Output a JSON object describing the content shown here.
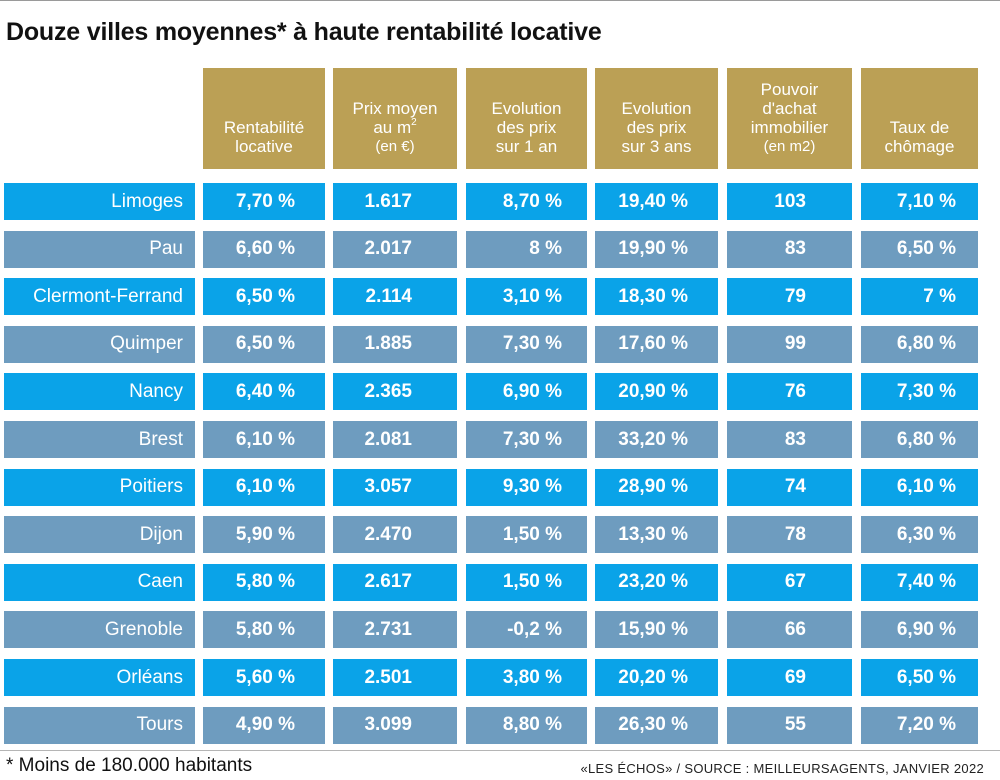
{
  "title": "Douze villes moyennes* à haute rentabilité locative",
  "footnote": "* Moins de 180.000 habitants",
  "source": "«LES ÉCHOS» / SOURCE : MEILLEURSAGENTS, JANVIER 2022",
  "colors": {
    "header": "#bba055",
    "row_bright": "#0aa3e8",
    "row_muted": "#6e9cbf",
    "text_on_fill": "#ffffff"
  },
  "chart_data": {
    "type": "table",
    "columns": [
      {
        "key": "rentabilite",
        "lines": [
          "Rentabilité",
          "locative"
        ]
      },
      {
        "key": "prix",
        "lines": [
          "Prix moyen",
          "au m"
        ],
        "superscript": "2",
        "unit": "(en €)"
      },
      {
        "key": "evol1",
        "lines": [
          "Evolution",
          "des prix",
          "sur 1 an"
        ]
      },
      {
        "key": "evol3",
        "lines": [
          "Evolution",
          "des prix",
          "sur 3 ans"
        ]
      },
      {
        "key": "pouvoir",
        "lines": [
          "Pouvoir",
          "d'achat",
          "immobilier"
        ],
        "unit": "(en m2)"
      },
      {
        "key": "chomage",
        "lines": [
          "Taux de",
          "chômage"
        ]
      }
    ],
    "rows": [
      {
        "city": "Limoges",
        "values": [
          "7,70 %",
          "1.617",
          "8,70 %",
          "19,40 %",
          "103",
          "7,10 %"
        ]
      },
      {
        "city": "Pau",
        "values": [
          "6,60 %",
          "2.017",
          "8 %",
          "19,90 %",
          "83",
          "6,50 %"
        ]
      },
      {
        "city": "Clermont-Ferrand",
        "values": [
          "6,50 %",
          "2.114",
          "3,10 %",
          "18,30 %",
          "79",
          "7 %"
        ]
      },
      {
        "city": "Quimper",
        "values": [
          "6,50 %",
          "1.885",
          "7,30 %",
          "17,60 %",
          "99",
          "6,80 %"
        ]
      },
      {
        "city": "Nancy",
        "values": [
          "6,40 %",
          "2.365",
          "6,90 %",
          "20,90 %",
          "76",
          "7,30 %"
        ]
      },
      {
        "city": "Brest",
        "values": [
          "6,10 %",
          "2.081",
          "7,30 %",
          "33,20 %",
          "83",
          "6,80 %"
        ]
      },
      {
        "city": "Poitiers",
        "values": [
          "6,10 %",
          "3.057",
          "9,30 %",
          "28,90 %",
          "74",
          "6,10 %"
        ]
      },
      {
        "city": "Dijon",
        "values": [
          "5,90 %",
          "2.470",
          "1,50 %",
          "13,30 %",
          "78",
          "6,30 %"
        ]
      },
      {
        "city": "Caen",
        "values": [
          "5,80 %",
          "2.617",
          "1,50 %",
          "23,20 %",
          "67",
          "7,40 %"
        ]
      },
      {
        "city": "Grenoble",
        "values": [
          "5,80 %",
          "2.731",
          "-0,2 %",
          "15,90 %",
          "66",
          "6,90 %"
        ]
      },
      {
        "city": "Orléans",
        "values": [
          "5,60 %",
          "2.501",
          "3,80 %",
          "20,20 %",
          "69",
          "6,50 %"
        ]
      },
      {
        "city": "Tours",
        "values": [
          "4,90 %",
          "3.099",
          "8,80 %",
          "26,30 %",
          "55",
          "7,20 %"
        ]
      }
    ]
  }
}
